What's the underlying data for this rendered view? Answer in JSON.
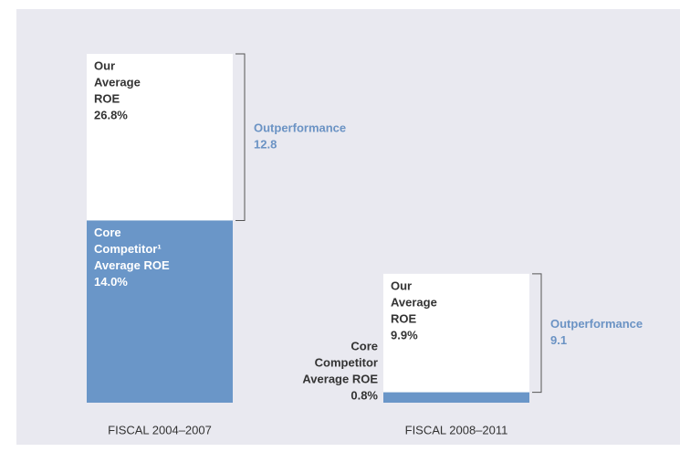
{
  "chart_data": {
    "type": "bar",
    "categories": [
      "FISCAL 2004–2007",
      "FISCAL 2008–2011"
    ],
    "series": [
      {
        "color": "#ffffff",
        "text_color": "#333333",
        "values": [
          26.8,
          9.9
        ],
        "value_labels": [
          "26.8%",
          "9.9%"
        ],
        "label_lines": [
          [
            "Our",
            "Average",
            "ROE"
          ],
          [
            "Our",
            "Average",
            "ROE"
          ]
        ]
      },
      {
        "color": "#6a96c8",
        "text_color": "#ffffff",
        "values": [
          14.0,
          0.8
        ],
        "value_labels": [
          "14.0%",
          "0.8%"
        ],
        "label_lines": [
          [
            "Core",
            "Competitor¹",
            "Average ROE"
          ],
          [
            "Core",
            "Competitor",
            "Average ROE"
          ]
        ]
      }
    ],
    "outperformance": {
      "label": "Outperformance",
      "color": "#6b93c4",
      "values": [
        12.8,
        9.1
      ]
    }
  }
}
